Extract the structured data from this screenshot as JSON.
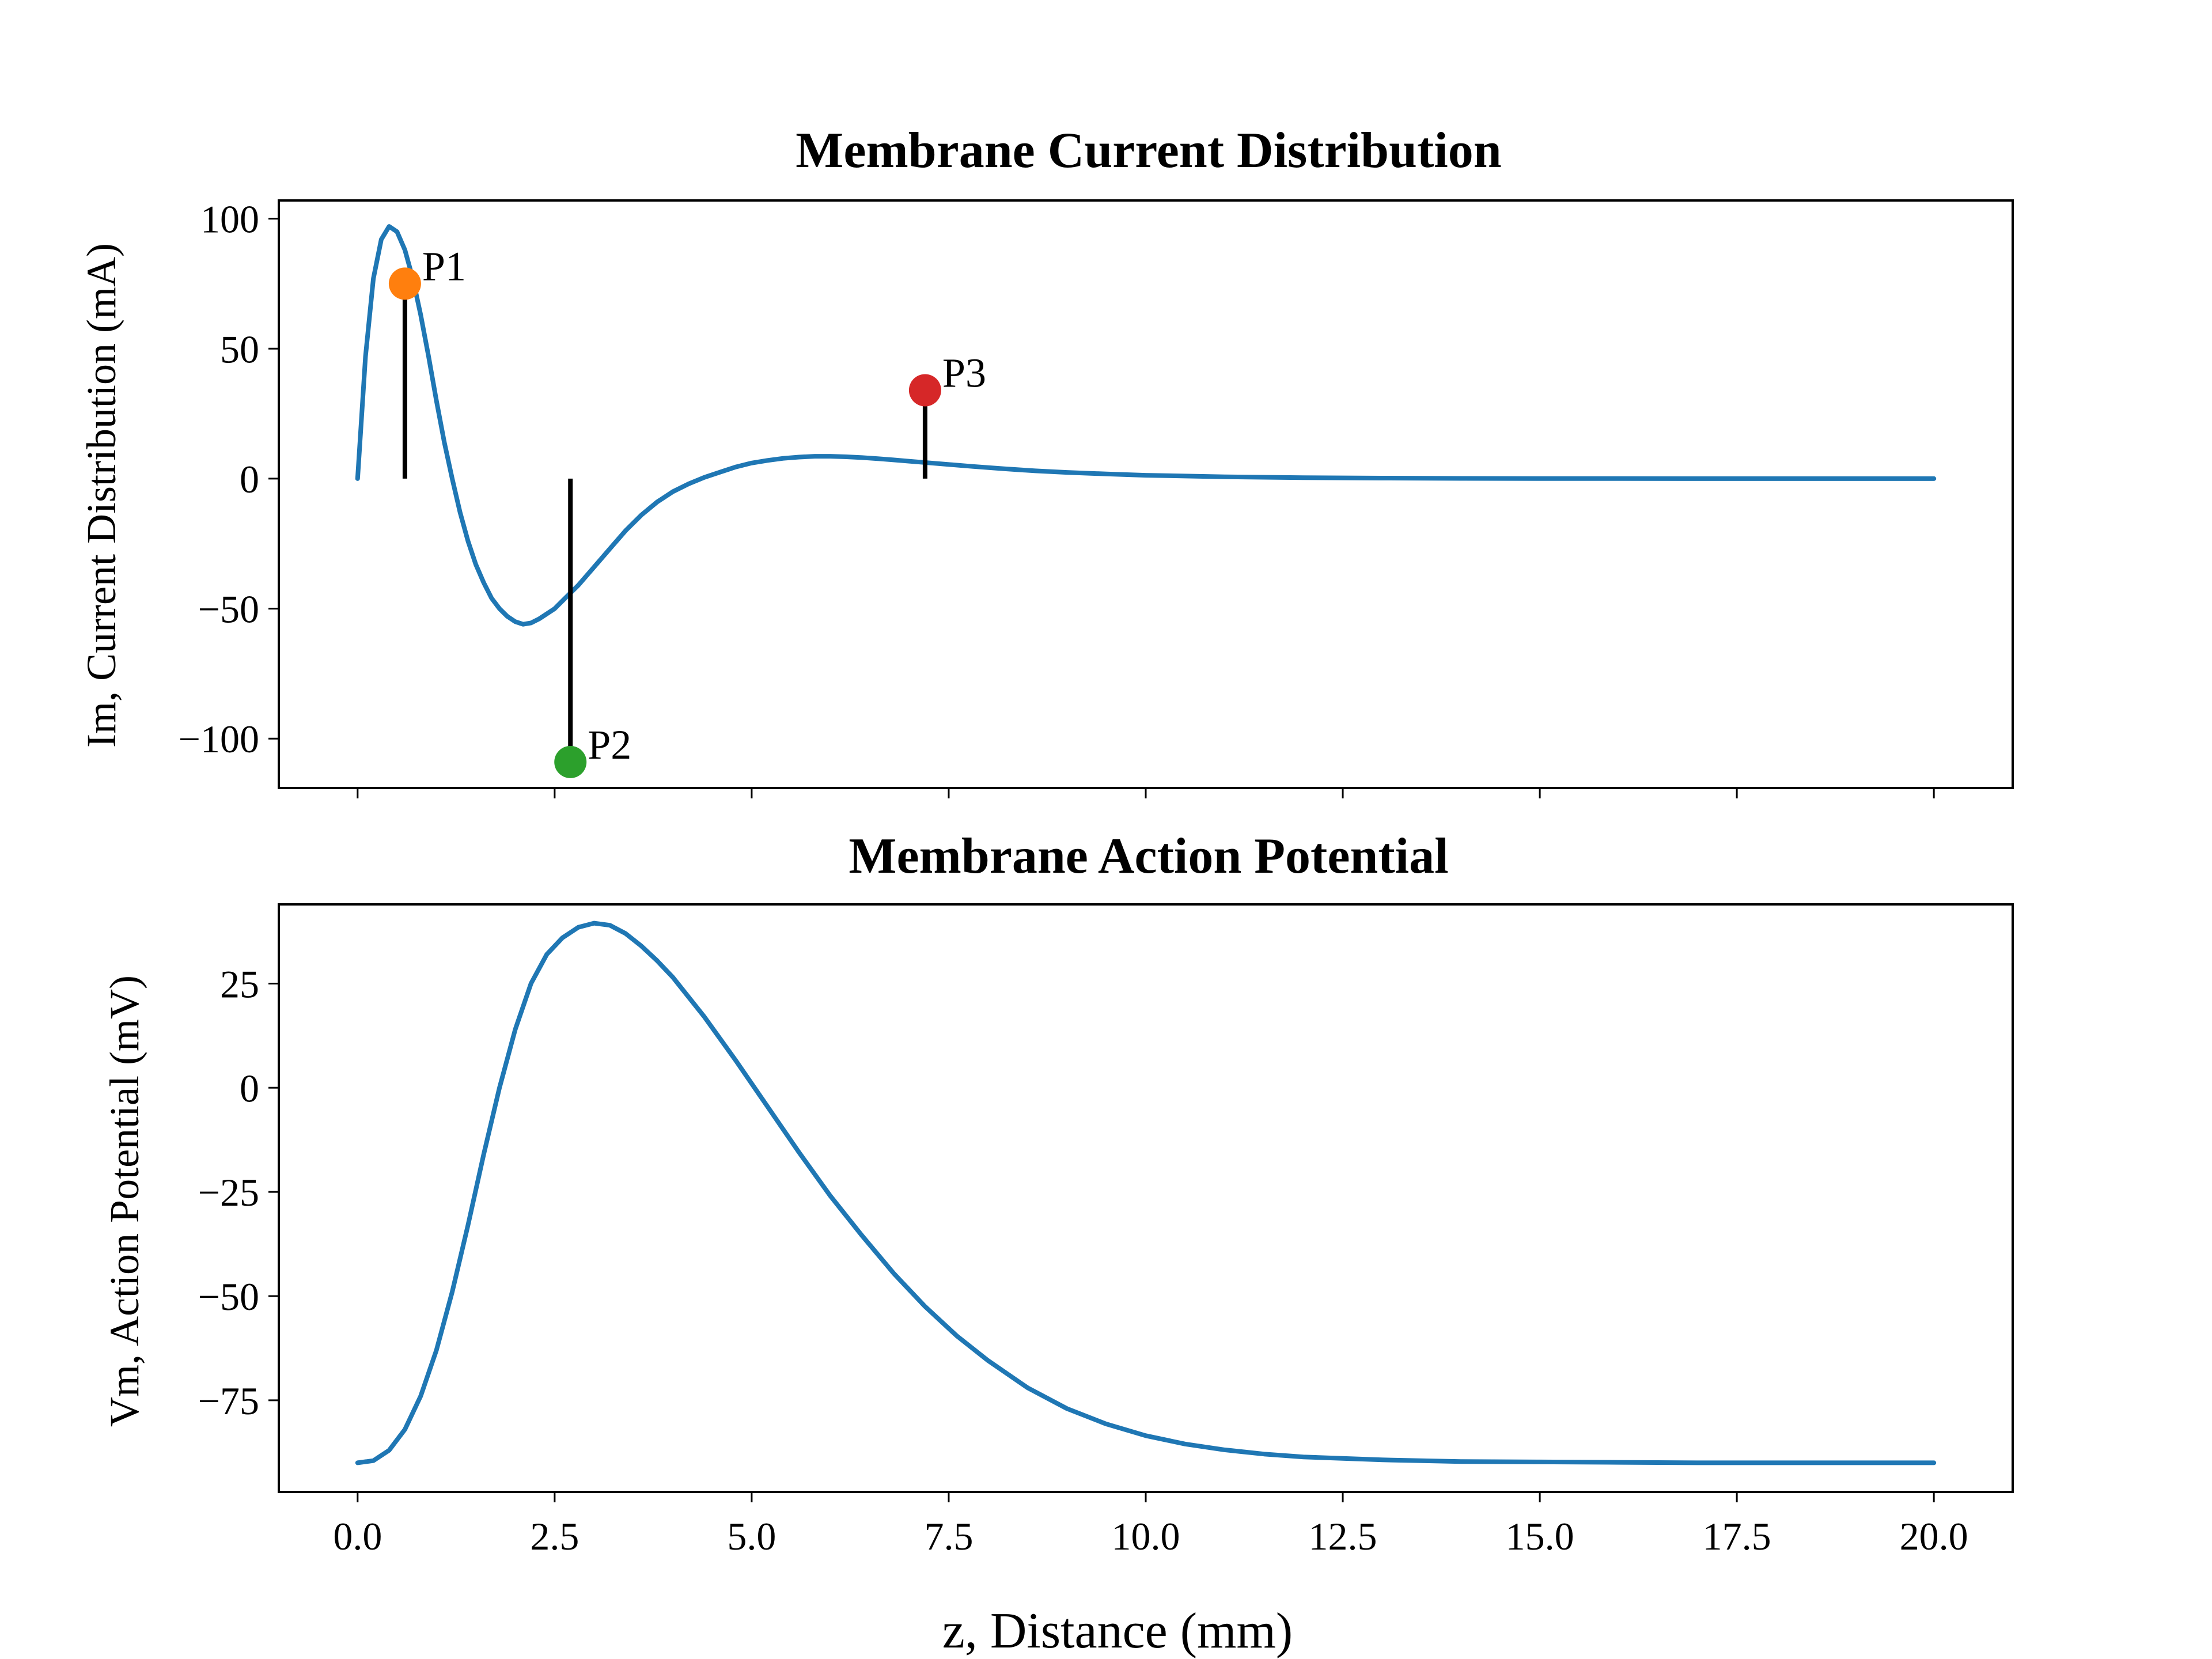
{
  "chart_data": [
    {
      "type": "line",
      "title": "Membrane Current Distribution",
      "xlabel": "",
      "ylabel": "Im, Current Distribution (mA)",
      "xlim": [
        -1.0,
        21.0
      ],
      "ylim": [
        -119,
        107
      ],
      "xticks": [
        0.0,
        2.5,
        5.0,
        7.5,
        10.0,
        12.5,
        15.0,
        17.5,
        20.0
      ],
      "xtick_labels_visible": false,
      "yticks": [
        100,
        50,
        0,
        -50,
        -100
      ],
      "ytick_labels": [
        "100",
        "50",
        "0",
        "−50",
        "−100"
      ],
      "grid": false,
      "series": [
        {
          "color": "#1f77b4",
          "x": [
            0.0,
            0.1,
            0.2,
            0.3,
            0.4,
            0.5,
            0.6,
            0.7,
            0.8,
            0.9,
            1.0,
            1.1,
            1.2,
            1.3,
            1.4,
            1.5,
            1.6,
            1.7,
            1.8,
            1.9,
            2.0,
            2.1,
            2.2,
            2.3,
            2.4,
            2.5,
            2.6,
            2.7,
            2.8,
            3.0,
            3.2,
            3.4,
            3.6,
            3.8,
            4.0,
            4.2,
            4.4,
            4.6,
            4.8,
            5.0,
            5.2,
            5.4,
            5.6,
            5.8,
            6.0,
            6.2,
            6.4,
            6.6,
            6.8,
            7.0,
            7.4,
            7.8,
            8.2,
            8.6,
            9.0,
            9.5,
            10.0,
            10.5,
            11.0,
            12.0,
            13.0,
            14.0,
            15.0,
            16.0,
            17.0,
            18.0,
            19.0,
            20.0
          ],
          "y": [
            0,
            47,
            77,
            92,
            97,
            95,
            88,
            77,
            63,
            47,
            30,
            14,
            0,
            -13,
            -24,
            -33,
            -40,
            -46,
            -50,
            -53,
            -55,
            -56,
            -55.5,
            -54,
            -52,
            -50,
            -47,
            -44,
            -41,
            -34,
            -27,
            -20,
            -14,
            -9,
            -5,
            -2,
            0.5,
            2.5,
            4.5,
            6,
            7,
            7.8,
            8.3,
            8.6,
            8.6,
            8.4,
            8.1,
            7.7,
            7.2,
            6.7,
            5.7,
            4.7,
            3.8,
            3.0,
            2.4,
            1.8,
            1.3,
            1.0,
            0.7,
            0.35,
            0.2,
            0.1,
            0.05,
            0.02,
            0.01,
            0,
            0,
            0
          ]
        }
      ],
      "stems": [
        {
          "label": "P1",
          "x": 0.6,
          "y": 75,
          "color": "#ff7f0e"
        },
        {
          "label": "P2",
          "x": 2.7,
          "y": -109,
          "color": "#2ca02c"
        },
        {
          "label": "P3",
          "x": 7.2,
          "y": 34,
          "color": "#d62728"
        }
      ]
    },
    {
      "type": "line",
      "title": "Membrane Action Potential",
      "xlabel": "z, Distance (mm)",
      "ylabel": "Vm, Action Potential (mV)",
      "xlim": [
        -1.0,
        21.0
      ],
      "ylim": [
        -97,
        44
      ],
      "xticks": [
        0.0,
        2.5,
        5.0,
        7.5,
        10.0,
        12.5,
        15.0,
        17.5,
        20.0
      ],
      "xtick_labels": [
        "0.0",
        "2.5",
        "5.0",
        "7.5",
        "10.0",
        "12.5",
        "15.0",
        "17.5",
        "20.0"
      ],
      "yticks": [
        25,
        0,
        -25,
        -50,
        -75
      ],
      "ytick_labels": [
        "25",
        "0",
        "−25",
        "−50",
        "−75"
      ],
      "grid": false,
      "series": [
        {
          "color": "#1f77b4",
          "x": [
            0.0,
            0.2,
            0.4,
            0.6,
            0.8,
            1.0,
            1.2,
            1.4,
            1.6,
            1.8,
            2.0,
            2.2,
            2.4,
            2.6,
            2.8,
            3.0,
            3.2,
            3.4,
            3.6,
            3.8,
            4.0,
            4.4,
            4.8,
            5.2,
            5.6,
            6.0,
            6.4,
            6.8,
            7.2,
            7.6,
            8.0,
            8.5,
            9.0,
            9.5,
            10.0,
            10.5,
            11.0,
            11.5,
            12.0,
            13.0,
            14.0,
            15.0,
            16.0,
            17.0,
            18.0,
            19.0,
            20.0
          ],
          "y": [
            -90,
            -89.5,
            -87,
            -82,
            -74,
            -63,
            -49,
            -33,
            -16,
            0,
            14,
            25,
            32,
            36,
            38.5,
            39.5,
            39,
            37,
            34,
            30.5,
            26.5,
            17,
            6.5,
            -4.5,
            -15.5,
            -26,
            -35.5,
            -44.5,
            -52.5,
            -59.5,
            -65.5,
            -72,
            -77,
            -80.7,
            -83.5,
            -85.5,
            -86.9,
            -87.9,
            -88.6,
            -89.3,
            -89.7,
            -89.8,
            -89.9,
            -90,
            -90,
            -90,
            -90
          ]
        }
      ]
    }
  ]
}
